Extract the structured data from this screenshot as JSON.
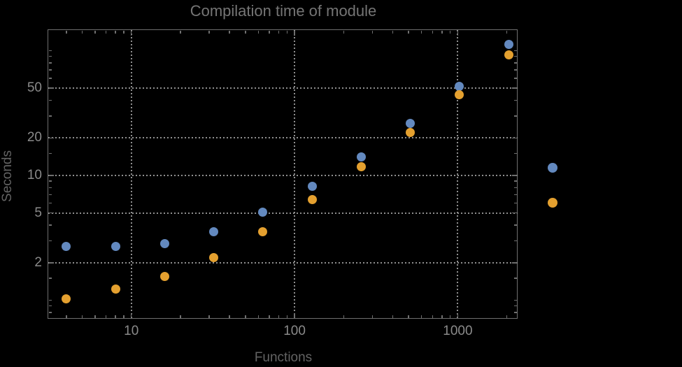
{
  "chart_data": {
    "type": "scatter",
    "title": "Compilation time of module",
    "xlabel": "Functions",
    "ylabel": "Seconds",
    "x_scale": "log",
    "y_scale": "log",
    "x_range": [
      3.1,
      2300
    ],
    "y_range": [
      0.72,
      146
    ],
    "grid": "dotted gridlines at labeled ticks only",
    "legend_position": "outside right of plot; two color markers, label text not legible against background",
    "x": [
      4,
      8,
      16,
      32,
      64,
      128,
      256,
      512,
      1024,
      2048
    ],
    "series": [
      {
        "name": "series-1-blue",
        "color": "#6389bf",
        "values": [
          2.7,
          2.7,
          2.85,
          3.55,
          5.05,
          8.2,
          14.1,
          26.3,
          52.0,
          112.0
        ]
      },
      {
        "name": "series-2-orange",
        "color": "#e4a02f",
        "values": [
          1.03,
          1.23,
          1.55,
          2.2,
          3.55,
          6.4,
          11.8,
          22.2,
          44.5,
          92.0
        ]
      }
    ],
    "x_ticks_labeled": [
      10,
      100,
      1000
    ],
    "x_tick_labels": [
      "10",
      "100",
      "1000"
    ],
    "y_ticks_labeled": [
      2,
      5,
      10,
      20,
      50
    ],
    "y_tick_labels": [
      "2",
      "5",
      "10",
      "20",
      "50"
    ],
    "x_ticks_minor": [
      4,
      5,
      6,
      7,
      8,
      9,
      20,
      30,
      40,
      50,
      60,
      70,
      80,
      90,
      200,
      300,
      400,
      500,
      600,
      700,
      800,
      900,
      2000
    ],
    "y_ticks_minor": [
      0.8,
      0.9,
      1,
      1.5,
      3,
      4,
      6,
      7,
      8,
      9,
      15,
      30,
      40,
      60,
      70,
      80,
      90,
      100
    ]
  },
  "colors": {
    "background": "#000000",
    "frame": "#6f6f6f",
    "gridline": "#8f8f8f",
    "tick_label": "#8a8a8a",
    "title": "#757575",
    "axis_label": "#636363"
  }
}
